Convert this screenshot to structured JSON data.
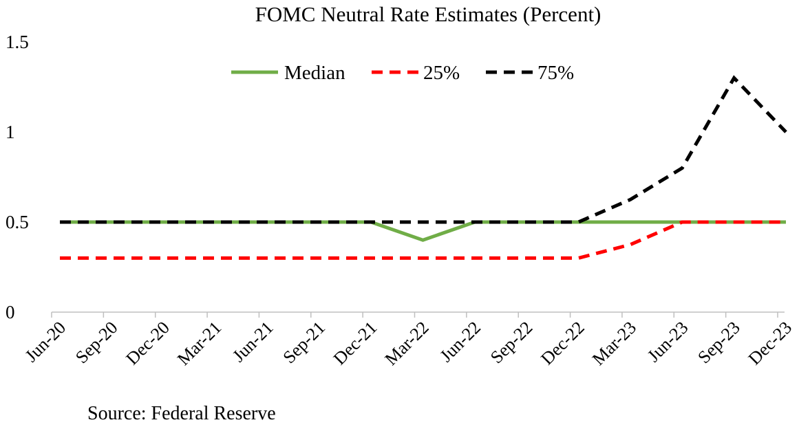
{
  "chart_data": {
    "type": "line",
    "title": "FOMC Neutral Rate Estimates (Percent)",
    "xlabel": "",
    "ylabel": "",
    "categories": [
      "Jun-20",
      "Sep-20",
      "Dec-20",
      "Mar-21",
      "Jun-21",
      "Sep-21",
      "Dec-21",
      "Mar-22",
      "Jun-22",
      "Sep-22",
      "Dec-22",
      "Mar-23",
      "Jun-23",
      "Sep-23",
      "Dec-23"
    ],
    "y_ticks": [
      "0",
      "0.5",
      "1",
      "1.5"
    ],
    "ylim": [
      0,
      1.5
    ],
    "grid": false,
    "legend_position": "top-center",
    "series": [
      {
        "name": "Median",
        "color": "#70ad47",
        "dash": "solid",
        "values": [
          0.5,
          0.5,
          0.5,
          0.5,
          0.5,
          0.5,
          0.5,
          0.4,
          0.5,
          0.5,
          0.5,
          0.5,
          0.5,
          0.5,
          0.5
        ]
      },
      {
        "name": "25%",
        "color": "#ff0000",
        "dash": "dashed",
        "values": [
          0.3,
          0.3,
          0.3,
          0.3,
          0.3,
          0.3,
          0.3,
          0.3,
          0.3,
          0.3,
          0.3,
          0.375,
          0.5,
          0.5,
          0.5
        ]
      },
      {
        "name": "75%",
        "color": "#000000",
        "dash": "dashed",
        "values": [
          0.5,
          0.5,
          0.5,
          0.5,
          0.5,
          0.5,
          0.5,
          0.5,
          0.5,
          0.5,
          0.5,
          0.625,
          0.8,
          1.3,
          1.0
        ]
      }
    ]
  },
  "source": "Source: Federal Reserve"
}
